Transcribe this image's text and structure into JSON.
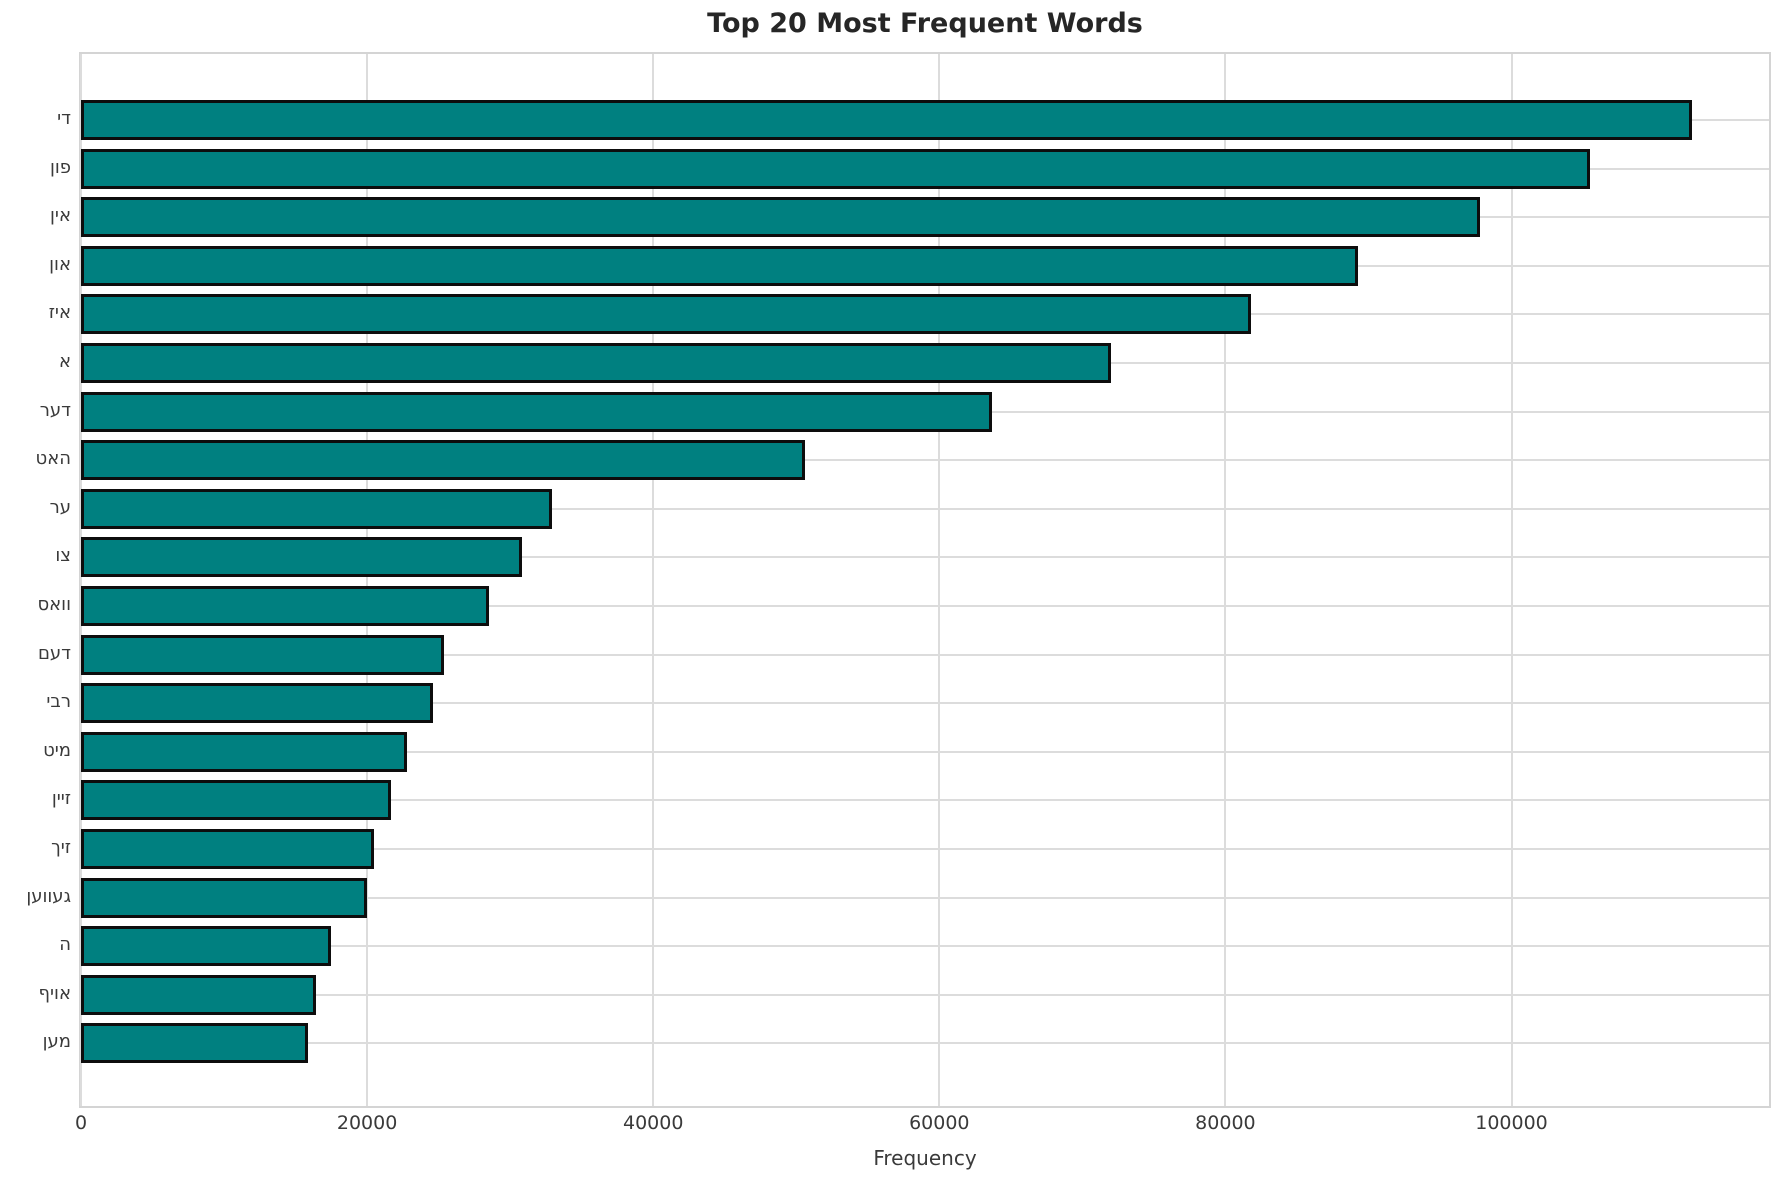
{
  "chart_data": {
    "type": "bar",
    "orientation": "horizontal",
    "title": "Top 20 Most Frequent Words",
    "xlabel": "Frequency",
    "ylabel": "",
    "categories": [
      "די",
      "פון",
      "אין",
      "און",
      "איז",
      "א",
      "דער",
      "האט",
      "ער",
      "צו",
      "וואס",
      "דעם",
      "רבי",
      "מיט",
      "זיין",
      "זיך",
      "געווען",
      "ה",
      "אויף",
      "מען"
    ],
    "values": [
      112600,
      105500,
      97800,
      89300,
      81800,
      72000,
      63700,
      50600,
      32900,
      30800,
      28500,
      25400,
      24600,
      22800,
      21700,
      20500,
      20000,
      17500,
      16400,
      15900
    ],
    "xlim": [
      0,
      118000
    ],
    "xticks": [
      0,
      20000,
      40000,
      60000,
      80000,
      100000
    ],
    "xtick_labels": [
      "0",
      "20000",
      "40000",
      "60000",
      "80000",
      "100000"
    ],
    "grid": true,
    "legend_position": "none",
    "bar_color": "#008080",
    "bar_edge_color": "#0d0d0d",
    "grid_color": "#dcdcdc",
    "text_color": "#3a3a3a",
    "title_color": "#262626"
  }
}
